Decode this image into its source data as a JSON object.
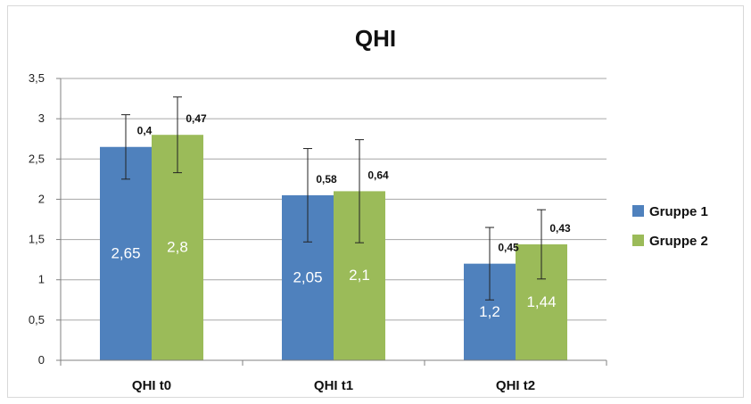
{
  "chart_data": {
    "type": "bar",
    "title": "QHI",
    "categories": [
      "QHI t0",
      "QHI t1",
      "QHI t2"
    ],
    "ylim": [
      0,
      3.5
    ],
    "yticks": [
      "0",
      "0,5",
      "1",
      "1,5",
      "2",
      "2,5",
      "3",
      "3,5"
    ],
    "grid": true,
    "legend_position": "right",
    "series": [
      {
        "name": "Gruppe 1",
        "color": "#4f81bd",
        "values": [
          2.65,
          2.05,
          1.2
        ],
        "value_labels": [
          "2,65",
          "2,05",
          "1,2"
        ],
        "error": [
          0.4,
          0.58,
          0.45
        ],
        "error_labels": [
          "0,4",
          "0,58",
          "0,45"
        ]
      },
      {
        "name": "Gruppe 2",
        "color": "#9bbb59",
        "values": [
          2.8,
          2.1,
          1.44
        ],
        "value_labels": [
          "2,8",
          "2,1",
          "1,44"
        ],
        "error": [
          0.47,
          0.64,
          0.43
        ],
        "error_labels": [
          "0,47",
          "0,64",
          "0,43"
        ]
      }
    ]
  }
}
